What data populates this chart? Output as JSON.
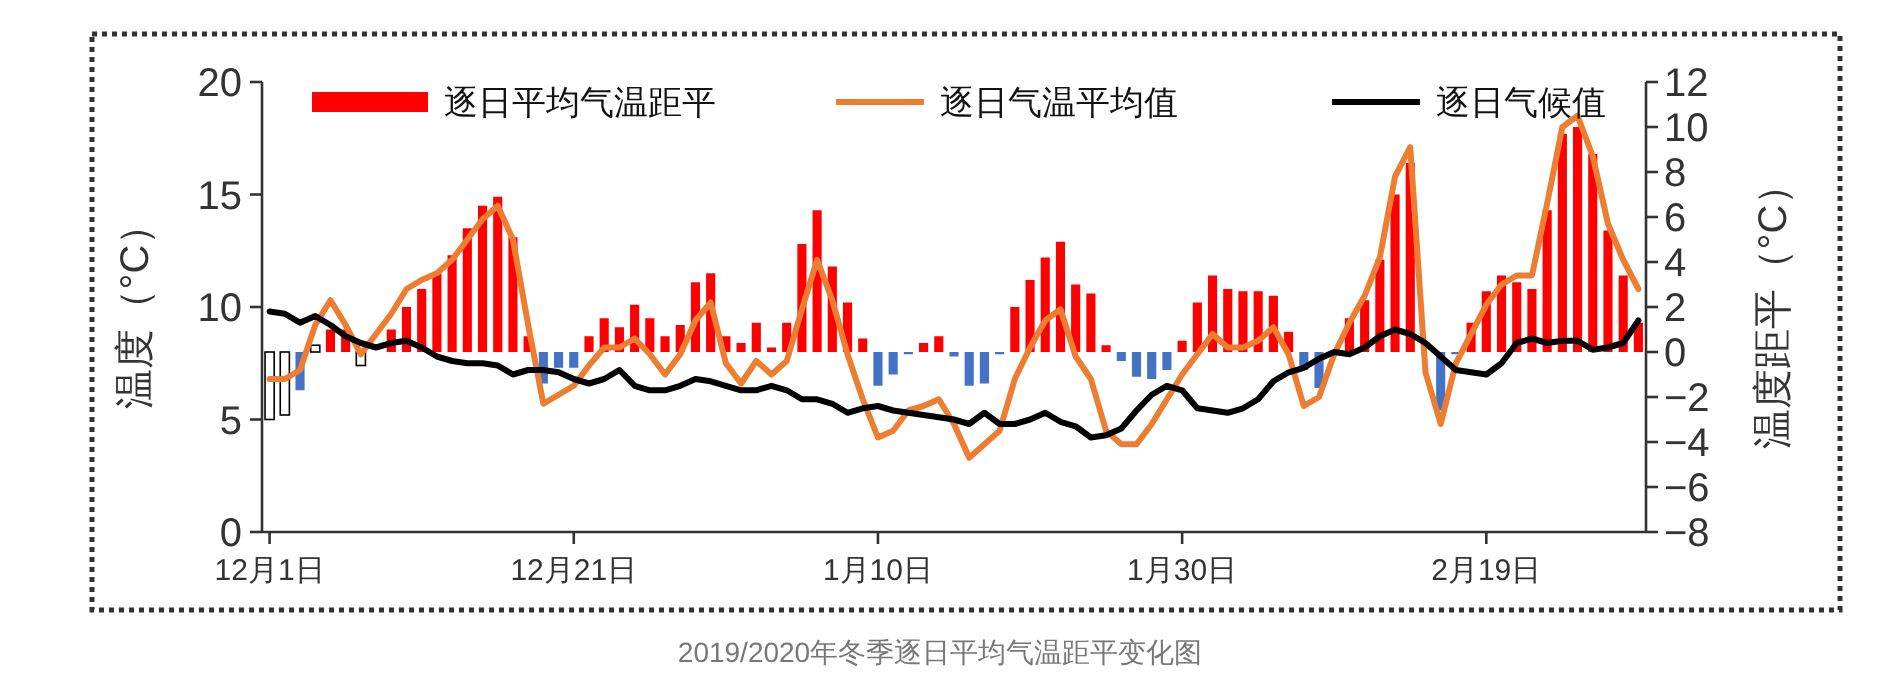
{
  "chart_data": {
    "type": "bar",
    "categories": [
      "12月1日",
      null,
      null,
      null,
      null,
      null,
      null,
      null,
      null,
      null,
      null,
      null,
      null,
      null,
      null,
      null,
      null,
      null,
      null,
      null,
      "12月21日",
      null,
      null,
      null,
      null,
      null,
      null,
      null,
      null,
      null,
      null,
      null,
      null,
      null,
      null,
      null,
      null,
      null,
      null,
      null,
      "1月10日",
      null,
      null,
      null,
      null,
      null,
      null,
      null,
      null,
      null,
      null,
      null,
      null,
      null,
      null,
      null,
      null,
      null,
      null,
      null,
      "1月30日",
      null,
      null,
      null,
      null,
      null,
      null,
      null,
      null,
      null,
      null,
      null,
      null,
      null,
      null,
      null,
      null,
      null,
      null,
      null,
      "2月19日",
      null,
      null,
      null,
      null,
      null,
      null,
      null,
      null,
      null,
      null
    ],
    "series": [
      {
        "name": "逐日平均气温距平",
        "axis": "y2",
        "values": [
          -3.0,
          -2.8,
          -1.7,
          0.3,
          1.0,
          1.0,
          -0.6,
          null,
          1.0,
          2.0,
          2.8,
          3.5,
          4.3,
          5.5,
          6.5,
          6.9,
          5.1,
          0.7,
          -1.4,
          -0.7,
          -0.7,
          0.7,
          1.5,
          1.1,
          2.1,
          1.5,
          0.7,
          1.2,
          3.1,
          3.5,
          0.7,
          0.4,
          1.3,
          0.2,
          1.3,
          4.8,
          6.3,
          3.8,
          2.2,
          0.6,
          -1.5,
          -1.0,
          -0.1,
          0.4,
          0.7,
          -0.2,
          -1.5,
          -1.4,
          -0.1,
          2.0,
          3.2,
          4.2,
          4.9,
          3.0,
          2.6,
          0.3,
          -0.4,
          -1.1,
          -1.2,
          -0.8,
          0.5,
          2.2,
          3.4,
          2.8,
          2.7,
          2.7,
          2.5,
          0.9,
          -0.8,
          -1.6,
          null,
          1.5,
          2.3,
          4.1,
          7.0,
          8.4,
          null,
          -2.6,
          -0.1,
          1.3,
          2.7,
          3.4,
          3.1,
          2.8,
          6.3,
          9.7,
          10.0,
          8.8,
          5.4,
          3.4,
          1.3
        ],
        "color": "#ff0000",
        "colors": [
          "#ffffff",
          "#ffffff",
          "#4472c4",
          "#ffffff",
          "#ff0000",
          "#ff0000",
          "#ffffff",
          null,
          "#ff0000",
          "#ff0000",
          "#ff0000",
          "#ff0000",
          "#ff0000",
          "#ff0000",
          "#ff0000",
          "#ff0000",
          "#ff0000",
          "#ff0000",
          "#4472c4",
          "#4472c4",
          "#4472c4",
          "#ff0000",
          "#ff0000",
          "#ff0000",
          "#ff0000",
          "#ff0000",
          "#ff0000",
          "#ff0000",
          "#ff0000",
          "#ff0000",
          "#ff0000",
          "#ff0000",
          "#ff0000",
          "#ff0000",
          "#ff0000",
          "#ff0000",
          "#ff0000",
          "#ff0000",
          "#ff0000",
          "#ff0000",
          "#4472c4",
          "#4472c4",
          "#4472c4",
          "#ff0000",
          "#ff0000",
          "#4472c4",
          "#4472c4",
          "#4472c4",
          "#4472c4",
          "#ff0000",
          "#ff0000",
          "#ff0000",
          "#ff0000",
          "#ff0000",
          "#ff0000",
          "#ff0000",
          "#4472c4",
          "#4472c4",
          "#4472c4",
          "#4472c4",
          "#ff0000",
          "#ff0000",
          "#ff0000",
          "#ff0000",
          "#ff0000",
          "#ff0000",
          "#ff0000",
          "#ff0000",
          "#4472c4",
          "#4472c4",
          null,
          "#ff0000",
          "#ff0000",
          "#ff0000",
          "#ff0000",
          "#ff0000",
          null,
          "#4472c4",
          "#4472c4",
          "#ff0000",
          "#ff0000",
          "#ff0000",
          "#ff0000",
          "#ff0000",
          "#ff0000",
          "#ff0000",
          "#ff0000",
          "#ff0000",
          "#ff0000",
          "#ff0000",
          "#ff0000"
        ]
      },
      {
        "name": "逐日气温平均值",
        "type": "line",
        "color": "#ed7d31",
        "values": [
          6.8,
          6.8,
          7.2,
          9.2,
          10.3,
          9.2,
          7.9,
          8.8,
          9.7,
          10.8,
          11.2,
          11.5,
          12.1,
          13.0,
          13.9,
          14.5,
          13.0,
          9.2,
          5.7,
          6.1,
          6.5,
          7.4,
          8.2,
          8.2,
          8.6,
          7.9,
          7.0,
          7.9,
          9.4,
          10.2,
          7.5,
          6.6,
          7.6,
          7.0,
          7.6,
          9.9,
          12.1,
          10.3,
          7.9,
          5.9,
          4.2,
          4.5,
          5.4,
          5.6,
          5.9,
          4.8,
          3.3,
          3.9,
          4.5,
          6.8,
          8.2,
          9.4,
          9.9,
          7.8,
          6.8,
          4.5,
          3.9,
          3.9,
          4.8,
          5.9,
          7.0,
          7.9,
          8.8,
          8.2,
          8.2,
          8.5,
          9.1,
          7.9,
          5.6,
          6.0,
          7.9,
          9.3,
          10.5,
          12.2,
          15.8,
          17.1,
          7.1,
          4.8,
          7.5,
          8.8,
          10.1,
          11.0,
          11.4,
          11.4,
          14.6,
          18.0,
          18.5,
          16.7,
          13.7,
          12.1,
          10.8
        ]
      },
      {
        "name": "逐日气候值",
        "type": "line",
        "color": "#000000",
        "values": [
          9.8,
          9.7,
          9.3,
          9.6,
          9.2,
          8.7,
          8.4,
          8.2,
          8.4,
          8.5,
          8.2,
          7.8,
          7.6,
          7.5,
          7.5,
          7.4,
          7.0,
          7.2,
          7.2,
          7.1,
          6.8,
          6.6,
          6.8,
          7.2,
          6.5,
          6.3,
          6.3,
          6.5,
          6.8,
          6.7,
          6.5,
          6.3,
          6.3,
          6.5,
          6.3,
          5.9,
          5.9,
          5.7,
          5.3,
          5.5,
          5.6,
          5.4,
          5.3,
          5.2,
          5.1,
          5.0,
          4.8,
          5.3,
          4.8,
          4.8,
          5.0,
          5.3,
          4.9,
          4.7,
          4.2,
          4.3,
          4.6,
          5.4,
          6.1,
          6.5,
          6.3,
          5.5,
          5.4,
          5.3,
          5.5,
          5.9,
          6.7,
          7.1,
          7.3,
          7.7,
          8.0,
          7.9,
          8.2,
          8.7,
          9.0,
          8.8,
          8.4,
          7.8,
          7.2,
          7.1,
          7.0,
          7.5,
          8.4,
          8.6,
          8.4,
          8.5,
          8.5,
          8.1,
          8.2,
          8.4,
          9.4
        ]
      }
    ],
    "ylabel": "温度（°C）",
    "y2label": "温度距平（°C）",
    "ylim": [
      0,
      20
    ],
    "yticks": [
      0,
      5,
      10,
      15,
      20
    ],
    "y2lim": [
      -8,
      12
    ],
    "y2ticks": [
      -8,
      -6,
      -4,
      -2,
      0,
      2,
      4,
      6,
      8,
      10,
      12
    ],
    "legend": "top",
    "grid": false,
    "marker": "none",
    "line_style": "solid",
    "annotations": [
      "2019/2020年冬季逐日平均气温距平变化图"
    ]
  }
}
